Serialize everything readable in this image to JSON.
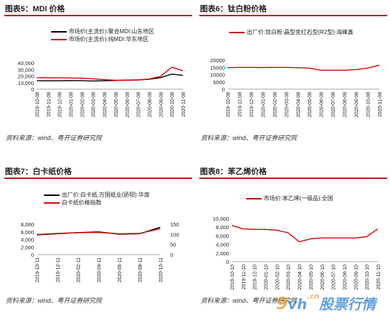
{
  "panels": [
    {
      "title": "图表5：MDI 价格",
      "source": "资料来源：wind、粤开证券研究院",
      "chart_data": {
        "type": "line",
        "x": [
          "2019-10-08",
          "2019-11-08",
          "2019-12-08",
          "2020-01-08",
          "2020-02-08",
          "2020-03-08",
          "2020-04-08",
          "2020-05-08",
          "2020-06-08",
          "2020-07-08",
          "2020-08-08",
          "2020-09-08",
          "2020-10-08",
          "2020-11-08"
        ],
        "xticks": [
          "2019-10-08",
          "2019-11-08",
          "2019-12-08",
          "2020-01-08",
          "2020-02-08",
          "2020-03-08",
          "2020-04-08",
          "2020-05-08",
          "2020-06-08",
          "2020-07-08",
          "2020-08-08",
          "2020-09-08",
          "2020-10-08",
          "2020-11-08"
        ],
        "yticks": [
          "0",
          "10,000",
          "20,000",
          "30,000",
          "40,000"
        ],
        "ylim": [
          0,
          40000
        ],
        "series": [
          {
            "name": "市场价(主流价):聚合MDI:山东地区",
            "color": "#000000",
            "values": [
              12800,
              12600,
              12800,
              13000,
              12900,
              12400,
              12800,
              13200,
              13800,
              14000,
              15000,
              17500,
              23000,
              21000
            ]
          },
          {
            "name": "市场价(主流价):纯MDI:华东地区",
            "color": "#d40000",
            "values": [
              17500,
              17300,
              17200,
              17000,
              16800,
              15800,
              14500,
              13500,
              13500,
              14000,
              15500,
              19500,
              33500,
              28000
            ]
          }
        ]
      }
    },
    {
      "title": "图表6：钛白粉价格",
      "source": "资料来源：wind、粤开证券研究院",
      "chart_data": {
        "type": "line",
        "x": [
          "2019-10-08",
          "2019-11-08",
          "2019-12-08",
          "2020-01-08",
          "2020-02-08",
          "2020-03-08",
          "2020-04-08",
          "2020-05-08",
          "2020-06-08",
          "2020-07-08",
          "2020-08-08",
          "2020-09-08",
          "2020-10-08",
          "2020-11-08"
        ],
        "xticks": [
          "2019-10-08",
          "2019-11-08",
          "2019-12-08",
          "2020-01-08",
          "2020-02-08",
          "2020-03-08",
          "2020-04-08",
          "2020-05-08",
          "2020-06-08",
          "2020-07-08",
          "2020-08-08",
          "2020-09-08",
          "2020-10-08",
          "2020-11-08"
        ],
        "yticks": [
          "0",
          "5000",
          "10000",
          "15000",
          "20000"
        ],
        "ylim": [
          0,
          20000
        ],
        "series": [
          {
            "name": "出厂价:钛白粉:晶型金红石型(R2型):海峰鑫",
            "color": "#d40000",
            "values": [
              14800,
              15000,
              15000,
              14900,
              15000,
              15000,
              14800,
              14500,
              13000,
              13000,
              13000,
              13500,
              14500,
              16500
            ]
          }
        ]
      }
    },
    {
      "title": "图表7：白卡纸价格",
      "source": "资料来源：wind、粤开证券研究院",
      "chart_data": {
        "type": "line",
        "x": [
          "2019-10-11",
          "2019-12-11",
          "2020-02-11",
          "2020-04-11",
          "2020-06-11",
          "2020-08-11",
          "2020-10-11"
        ],
        "xticks": [
          "2019-10-11",
          "2019-12-11",
          "2020-02-11",
          "2020-04-11",
          "2020-06-11",
          "2020-08-11",
          "2020-10-11"
        ],
        "yticks_left": [
          "0",
          "2,000",
          "4,000",
          "6,000",
          "8,000"
        ],
        "yticks_right": [
          "0",
          "50",
          "100",
          "150"
        ],
        "ylim": [
          0,
          8000
        ],
        "ylim_right": [
          0,
          150
        ],
        "series": [
          {
            "name": "出厂价:白卡纸:万国纸业(骄阳):华南",
            "color": "#000000",
            "axis": "left",
            "values": [
              5200,
              5500,
              5800,
              6000,
              5400,
              5500,
              7200
            ]
          },
          {
            "name": "白卡纸价格指数",
            "color": "#d40000",
            "axis": "right",
            "values": [
              99,
              105,
              108,
              110,
              103,
              105,
              128
            ]
          }
        ]
      }
    },
    {
      "title": "图表8：苯乙烯价格",
      "source": "资料来源：wind、粤开证券研究院",
      "chart_data": {
        "type": "line",
        "x": [
          "2019-10-10",
          "2019-11-10",
          "2019-12-10",
          "2020-01-10",
          "2020-02-10",
          "2020-03-10",
          "2020-04-10",
          "2020-05-10",
          "2020-06-10",
          "2020-07-10",
          "2020-08-10",
          "2020-09-10",
          "2020-10-10",
          "2020-11-10"
        ],
        "xticks": [
          "2019-10-10",
          "2019-11-10",
          "2019-12-10",
          "2020-01-10",
          "2020-02-10",
          "2020-03-10",
          "2020-04-10",
          "2020-05-10",
          "2020-06-10",
          "2020-07-10",
          "2020-08-10",
          "2020-09-10",
          "2020-10-10",
          "2020-11-10"
        ],
        "yticks": [
          "0",
          "2,000",
          "4,000",
          "6,000",
          "8,000",
          "10,000"
        ],
        "ylim": [
          0,
          10000
        ],
        "series": [
          {
            "name": "市场价:苯乙烯(一级品):全国",
            "color": "#d40000",
            "values": [
              8400,
              7600,
              7500,
              7500,
              7300,
              6700,
              4600,
              5300,
              5500,
              5500,
              5500,
              5500,
              5800,
              7600
            ]
          }
        ]
      }
    }
  ],
  "watermark": {
    "nine": "9",
    "site": "vh",
    "domain": ".cn",
    "text": "股票行情"
  }
}
